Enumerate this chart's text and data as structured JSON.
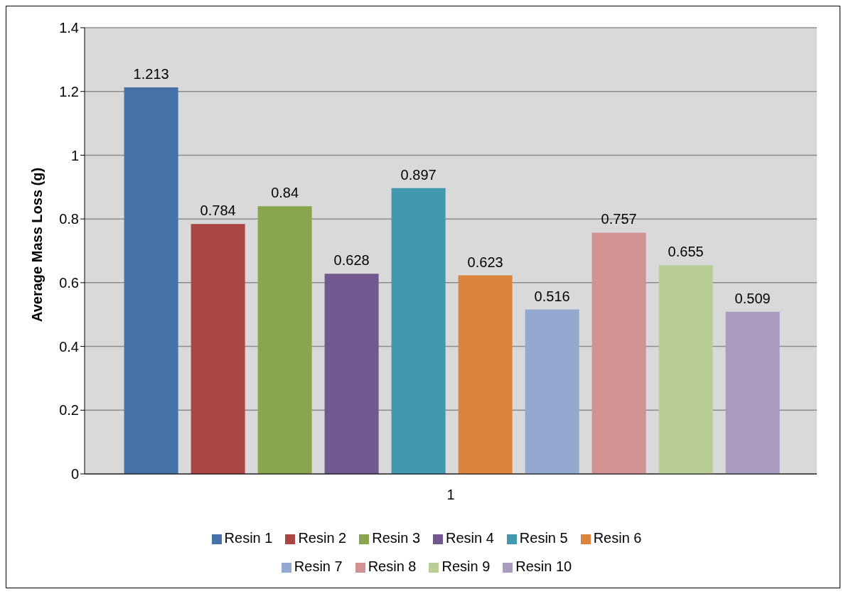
{
  "chart_data": {
    "type": "bar",
    "xlabel": null,
    "ylabel": "Average Mass Loss (g)",
    "categories": [
      "1"
    ],
    "series": [
      {
        "name": "Resin 1",
        "color": "#4572a7",
        "values": [
          1.213
        ]
      },
      {
        "name": "Resin 2",
        "color": "#aa4643",
        "values": [
          0.784
        ]
      },
      {
        "name": "Resin 3",
        "color": "#89a54e",
        "values": [
          0.84
        ]
      },
      {
        "name": "Resin 4",
        "color": "#71588f",
        "values": [
          0.628
        ]
      },
      {
        "name": "Resin 5",
        "color": "#4198af",
        "values": [
          0.897
        ]
      },
      {
        "name": "Resin 6",
        "color": "#db843d",
        "values": [
          0.623
        ]
      },
      {
        "name": "Resin 7",
        "color": "#93a9cf",
        "values": [
          0.516
        ]
      },
      {
        "name": "Resin 8",
        "color": "#d19392",
        "values": [
          0.757
        ]
      },
      {
        "name": "Resin 9",
        "color": "#b9cd96",
        "values": [
          0.655
        ]
      },
      {
        "name": "Resin 10",
        "color": "#a99bbd",
        "values": [
          0.509
        ]
      }
    ],
    "ylim": [
      0,
      1.4
    ],
    "yticks": [
      0,
      0.2,
      0.4,
      0.6,
      0.8,
      1,
      1.2,
      1.4
    ],
    "grid": "y",
    "legend": "bottom",
    "data_labels": true
  }
}
